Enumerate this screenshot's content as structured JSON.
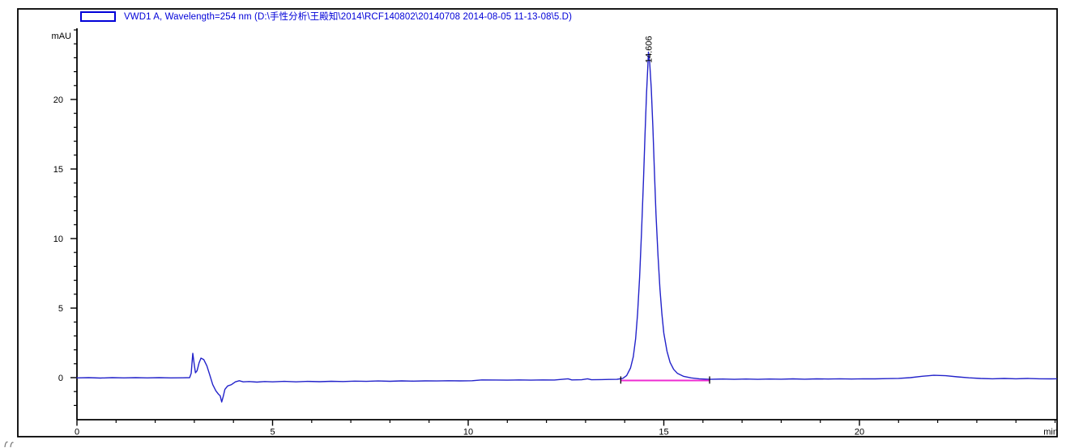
{
  "window": {
    "background": "#ffffff",
    "frame_color": "#000000"
  },
  "legend": {
    "label": "VWD1 A, Wavelength=254 nm (D:\\手性分析\\王殿知\\2014\\RCF140802\\20140708 2014-08-05 11-13-08\\5.D)",
    "text_color": "#0000d8",
    "swatch_border_color": "#0000d8",
    "swatch_icon": "signal-color-box"
  },
  "chart_data": {
    "type": "line",
    "title": "",
    "xlabel": "min",
    "ylabel": "mAU",
    "xlim": [
      0,
      25.05
    ],
    "ylim": [
      -3.0,
      25.1
    ],
    "x_ticks": [
      0,
      5,
      10,
      15,
      20
    ],
    "y_ticks": [
      0,
      5,
      10,
      15,
      20
    ],
    "x_minor_step": 1,
    "y_minor_step": 1,
    "grid": false,
    "legend_position": "top-left",
    "trace_color": "#2222ca",
    "axis_color": "#000000",
    "peaks": [
      {
        "label": "14.606",
        "retention_time_min": 14.606,
        "height_mau": 23.4
      }
    ],
    "integration_baseline": {
      "color": "#ee2bd2",
      "start_min": 13.9,
      "end_min": 16.17,
      "level_mau": -0.2,
      "tick_color": "#000000"
    },
    "series": [
      {
        "name": "VWD1 A, Wavelength=254 nm",
        "color": "#2222ca",
        "points": [
          [
            0,
            -0.02
          ],
          [
            0.3,
            0.0
          ],
          [
            0.6,
            -0.03
          ],
          [
            0.9,
            0.0
          ],
          [
            1.2,
            -0.02
          ],
          [
            1.5,
            0.0
          ],
          [
            1.8,
            -0.02
          ],
          [
            2.1,
            0.0
          ],
          [
            2.4,
            -0.02
          ],
          [
            2.7,
            -0.01
          ],
          [
            2.88,
            0.0
          ],
          [
            2.92,
            0.3
          ],
          [
            2.96,
            1.75
          ],
          [
            3.0,
            0.9
          ],
          [
            3.03,
            0.35
          ],
          [
            3.07,
            0.5
          ],
          [
            3.12,
            1.05
          ],
          [
            3.17,
            1.4
          ],
          [
            3.24,
            1.3
          ],
          [
            3.32,
            0.85
          ],
          [
            3.4,
            0.15
          ],
          [
            3.47,
            -0.5
          ],
          [
            3.55,
            -0.95
          ],
          [
            3.62,
            -1.2
          ],
          [
            3.66,
            -1.3
          ],
          [
            3.7,
            -1.75
          ],
          [
            3.74,
            -1.35
          ],
          [
            3.78,
            -0.85
          ],
          [
            3.85,
            -0.6
          ],
          [
            3.95,
            -0.5
          ],
          [
            4.05,
            -0.3
          ],
          [
            4.15,
            -0.22
          ],
          [
            4.25,
            -0.3
          ],
          [
            4.4,
            -0.28
          ],
          [
            4.6,
            -0.32
          ],
          [
            4.8,
            -0.28
          ],
          [
            5.0,
            -0.3
          ],
          [
            5.3,
            -0.27
          ],
          [
            5.6,
            -0.3
          ],
          [
            5.9,
            -0.27
          ],
          [
            6.2,
            -0.29
          ],
          [
            6.5,
            -0.26
          ],
          [
            6.8,
            -0.28
          ],
          [
            7.1,
            -0.25
          ],
          [
            7.4,
            -0.27
          ],
          [
            7.7,
            -0.24
          ],
          [
            8.0,
            -0.26
          ],
          [
            8.3,
            -0.23
          ],
          [
            8.6,
            -0.25
          ],
          [
            8.9,
            -0.23
          ],
          [
            9.2,
            -0.24
          ],
          [
            9.5,
            -0.22
          ],
          [
            9.8,
            -0.23
          ],
          [
            10.1,
            -0.22
          ],
          [
            10.35,
            -0.16
          ],
          [
            10.7,
            -0.17
          ],
          [
            11.0,
            -0.18
          ],
          [
            11.3,
            -0.16
          ],
          [
            11.6,
            -0.18
          ],
          [
            11.9,
            -0.16
          ],
          [
            12.2,
            -0.17
          ],
          [
            12.55,
            -0.08
          ],
          [
            12.65,
            -0.16
          ],
          [
            12.9,
            -0.15
          ],
          [
            13.05,
            -0.08
          ],
          [
            13.15,
            -0.15
          ],
          [
            13.4,
            -0.14
          ],
          [
            13.6,
            -0.13
          ],
          [
            13.8,
            -0.12
          ],
          [
            13.95,
            -0.05
          ],
          [
            14.05,
            0.15
          ],
          [
            14.15,
            0.7
          ],
          [
            14.22,
            1.5
          ],
          [
            14.28,
            2.8
          ],
          [
            14.33,
            4.6
          ],
          [
            14.38,
            7.2
          ],
          [
            14.43,
            10.5
          ],
          [
            14.48,
            14.2
          ],
          [
            14.52,
            17.5
          ],
          [
            14.56,
            20.5
          ],
          [
            14.59,
            22.3
          ],
          [
            14.606,
            23.4
          ],
          [
            14.64,
            22.6
          ],
          [
            14.68,
            20.8
          ],
          [
            14.72,
            18.0
          ],
          [
            14.76,
            14.8
          ],
          [
            14.8,
            11.8
          ],
          [
            14.85,
            8.8
          ],
          [
            14.9,
            6.4
          ],
          [
            14.95,
            4.6
          ],
          [
            15.0,
            3.2
          ],
          [
            15.08,
            1.9
          ],
          [
            15.16,
            1.1
          ],
          [
            15.25,
            0.6
          ],
          [
            15.35,
            0.3
          ],
          [
            15.5,
            0.1
          ],
          [
            15.7,
            -0.02
          ],
          [
            15.9,
            -0.08
          ],
          [
            16.17,
            -0.12
          ],
          [
            16.5,
            -0.1
          ],
          [
            16.8,
            -0.12
          ],
          [
            17.1,
            -0.1
          ],
          [
            17.4,
            -0.12
          ],
          [
            17.7,
            -0.1
          ],
          [
            18.0,
            -0.11
          ],
          [
            18.3,
            -0.09
          ],
          [
            18.6,
            -0.11
          ],
          [
            18.9,
            -0.09
          ],
          [
            19.2,
            -0.1
          ],
          [
            19.5,
            -0.08
          ],
          [
            19.8,
            -0.1
          ],
          [
            20.1,
            -0.08
          ],
          [
            20.4,
            -0.09
          ],
          [
            20.7,
            -0.07
          ],
          [
            21.0,
            -0.05
          ],
          [
            21.3,
            0.0
          ],
          [
            21.6,
            0.1
          ],
          [
            21.9,
            0.17
          ],
          [
            22.2,
            0.14
          ],
          [
            22.5,
            0.06
          ],
          [
            22.8,
            -0.01
          ],
          [
            23.1,
            -0.06
          ],
          [
            23.4,
            -0.08
          ],
          [
            23.7,
            -0.06
          ],
          [
            24.0,
            -0.08
          ],
          [
            24.3,
            -0.06
          ],
          [
            24.6,
            -0.08
          ],
          [
            24.9,
            -0.09
          ],
          [
            25.04,
            -0.08
          ]
        ]
      }
    ]
  }
}
